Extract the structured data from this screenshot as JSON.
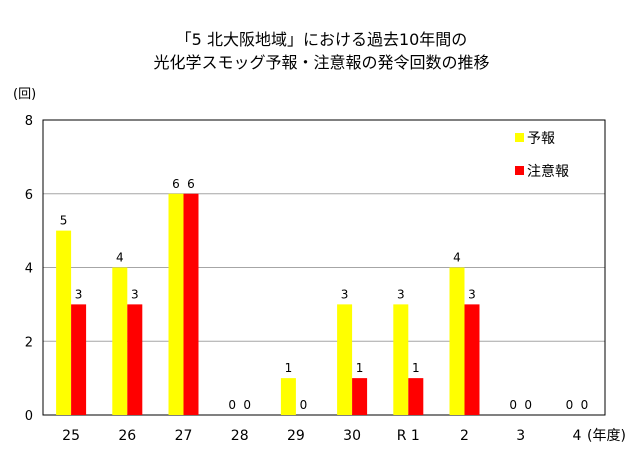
{
  "chart_data": {
    "type": "bar",
    "title_lines": [
      "「5 北大阪地域」における過去10年間の",
      "光化学スモッグ予報・注意報の発令回数の推移"
    ],
    "ylabel": "(回)",
    "xlabel": "(年度)",
    "ylim": [
      0,
      8
    ],
    "yticks": [
      0,
      2,
      4,
      6,
      8
    ],
    "grid": true,
    "legend_position": "top-right",
    "categories": [
      "25",
      "26",
      "27",
      "28",
      "29",
      "30",
      "R 1",
      "2",
      "3",
      "4"
    ],
    "series": [
      {
        "name": "予報",
        "color": "#ffff00",
        "values": [
          5,
          4,
          6,
          0,
          1,
          3,
          3,
          4,
          0,
          0
        ]
      },
      {
        "name": "注意報",
        "color": "#ff0000",
        "values": [
          3,
          3,
          6,
          0,
          0,
          1,
          1,
          3,
          0,
          0
        ]
      }
    ]
  }
}
